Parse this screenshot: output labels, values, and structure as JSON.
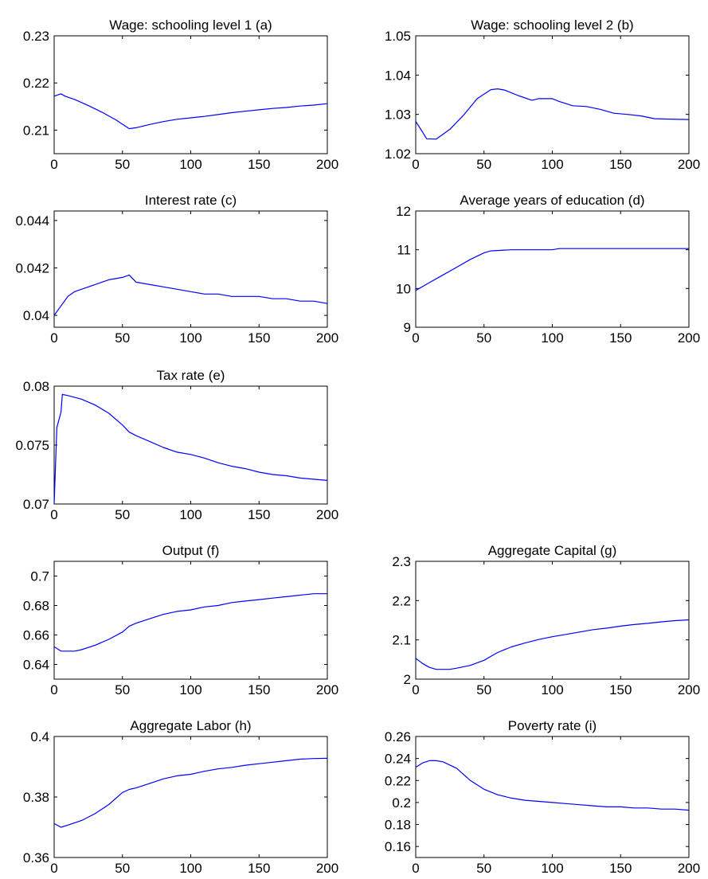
{
  "chart_data": [
    {
      "type": "line",
      "title": "Wage: schooling level 1 (a)",
      "xlim": [
        0,
        200
      ],
      "ylim": [
        0.205,
        0.23
      ],
      "xticks": [
        0,
        50,
        100,
        150,
        200
      ],
      "xtick_labels": [
        "0",
        "50",
        "100",
        "150",
        "200"
      ],
      "yticks": [
        0.21,
        0.22,
        0.23
      ],
      "ytick_labels": [
        "0.21",
        "0.22",
        "0.23"
      ],
      "series": [
        {
          "color": "#0000ff",
          "x": [
            0,
            5,
            8,
            15,
            25,
            35,
            45,
            55,
            60,
            70,
            80,
            90,
            100,
            110,
            120,
            130,
            140,
            150,
            160,
            170,
            180,
            190,
            200
          ],
          "y": [
            0.2172,
            0.2177,
            0.2172,
            0.2165,
            0.2152,
            0.2138,
            0.2122,
            0.2103,
            0.2105,
            0.2112,
            0.2118,
            0.2123,
            0.2126,
            0.2129,
            0.2133,
            0.2137,
            0.214,
            0.2143,
            0.2146,
            0.2148,
            0.2151,
            0.2153,
            0.2156
          ]
        }
      ]
    },
    {
      "type": "line",
      "title": "Wage: schooling level 2 (b)",
      "xlim": [
        0,
        200
      ],
      "ylim": [
        1.02,
        1.05
      ],
      "xticks": [
        0,
        50,
        100,
        150,
        200
      ],
      "xtick_labels": [
        "0",
        "50",
        "100",
        "150",
        "200"
      ],
      "yticks": [
        1.02,
        1.03,
        1.04,
        1.05
      ],
      "ytick_labels": [
        "1.02",
        "1.03",
        "1.04",
        "1.05"
      ],
      "series": [
        {
          "color": "#0000ff",
          "x": [
            0,
            5,
            8,
            15,
            25,
            35,
            45,
            55,
            60,
            65,
            75,
            85,
            90,
            100,
            105,
            115,
            125,
            135,
            145,
            155,
            165,
            175,
            185,
            200
          ],
          "y": [
            1.0282,
            1.0255,
            1.0238,
            1.0237,
            1.0262,
            1.0298,
            1.034,
            1.0363,
            1.0365,
            1.0362,
            1.0348,
            1.0336,
            1.034,
            1.034,
            1.0333,
            1.0322,
            1.032,
            1.0313,
            1.0303,
            1.03,
            1.0296,
            1.0289,
            1.0288,
            1.0287
          ]
        }
      ]
    },
    {
      "type": "line",
      "title": "Interest rate (c)",
      "xlim": [
        0,
        200
      ],
      "ylim": [
        0.0395,
        0.0444
      ],
      "xticks": [
        0,
        50,
        100,
        150,
        200
      ],
      "xtick_labels": [
        "0",
        "50",
        "100",
        "150",
        "200"
      ],
      "yticks": [
        0.04,
        0.042,
        0.044
      ],
      "ytick_labels": [
        "0.04",
        "0.042",
        "0.044"
      ],
      "series": [
        {
          "color": "#0000ff",
          "x": [
            0,
            5,
            10,
            15,
            20,
            30,
            40,
            50,
            55,
            60,
            70,
            80,
            90,
            100,
            110,
            120,
            130,
            140,
            150,
            160,
            170,
            180,
            190,
            200
          ],
          "y": [
            0.04,
            0.0404,
            0.0408,
            0.041,
            0.0411,
            0.0413,
            0.0415,
            0.0416,
            0.0417,
            0.0414,
            0.0413,
            0.0412,
            0.0411,
            0.041,
            0.0409,
            0.0409,
            0.0408,
            0.0408,
            0.0408,
            0.0407,
            0.0407,
            0.0406,
            0.0406,
            0.0405
          ]
        }
      ]
    },
    {
      "type": "line",
      "title": "Average years of education (d)",
      "xlim": [
        0,
        200
      ],
      "ylim": [
        9,
        12
      ],
      "xticks": [
        0,
        50,
        100,
        150,
        200
      ],
      "xtick_labels": [
        "0",
        "50",
        "100",
        "150",
        "200"
      ],
      "yticks": [
        9,
        10,
        11,
        12
      ],
      "ytick_labels": [
        "9",
        "10",
        "11",
        "12"
      ],
      "series": [
        {
          "color": "#0000ff",
          "x": [
            0,
            10,
            20,
            30,
            40,
            50,
            55,
            70,
            100,
            105,
            150,
            200
          ],
          "y": [
            9.95,
            10.15,
            10.35,
            10.55,
            10.75,
            10.92,
            10.97,
            11.0,
            11.0,
            11.03,
            11.03,
            11.03
          ]
        }
      ]
    },
    {
      "type": "line",
      "title": "Tax rate (e)",
      "xlim": [
        0,
        200
      ],
      "ylim": [
        0.07,
        0.08
      ],
      "xticks": [
        0,
        50,
        100,
        150,
        200
      ],
      "xtick_labels": [
        "0",
        "50",
        "100",
        "150",
        "200"
      ],
      "yticks": [
        0.07,
        0.075,
        0.08
      ],
      "ytick_labels": [
        "0.07",
        "0.075",
        "0.08"
      ],
      "series": [
        {
          "color": "#0000ff",
          "x": [
            0,
            2,
            5,
            6,
            10,
            20,
            30,
            40,
            50,
            55,
            60,
            70,
            80,
            90,
            100,
            110,
            120,
            130,
            140,
            150,
            160,
            170,
            180,
            190,
            200
          ],
          "y": [
            0.07,
            0.0765,
            0.0778,
            0.0793,
            0.0792,
            0.0789,
            0.0784,
            0.0777,
            0.0767,
            0.0761,
            0.0758,
            0.0753,
            0.0748,
            0.0744,
            0.0742,
            0.0739,
            0.0735,
            0.0732,
            0.073,
            0.0727,
            0.0725,
            0.0724,
            0.0722,
            0.0721,
            0.072
          ]
        }
      ]
    },
    {
      "type": "line",
      "title": "Output (f)",
      "xlim": [
        0,
        200
      ],
      "ylim": [
        0.63,
        0.71
      ],
      "xticks": [
        0,
        50,
        100,
        150,
        200
      ],
      "xtick_labels": [
        "0",
        "50",
        "100",
        "150",
        "200"
      ],
      "yticks": [
        0.64,
        0.66,
        0.68,
        0.7
      ],
      "ytick_labels": [
        "0.64",
        "0.66",
        "0.68",
        "0.7"
      ],
      "series": [
        {
          "color": "#0000ff",
          "x": [
            0,
            5,
            10,
            15,
            20,
            30,
            40,
            50,
            55,
            60,
            70,
            80,
            90,
            100,
            110,
            120,
            130,
            140,
            150,
            160,
            170,
            180,
            190,
            200
          ],
          "y": [
            0.652,
            0.649,
            0.649,
            0.649,
            0.65,
            0.653,
            0.657,
            0.662,
            0.666,
            0.668,
            0.671,
            0.674,
            0.676,
            0.677,
            0.679,
            0.68,
            0.682,
            0.683,
            0.684,
            0.685,
            0.686,
            0.687,
            0.688,
            0.688
          ]
        }
      ]
    },
    {
      "type": "line",
      "title": "Aggregate Capital (g)",
      "xlim": [
        0,
        200
      ],
      "ylim": [
        2.0,
        2.3
      ],
      "xticks": [
        0,
        50,
        100,
        150,
        200
      ],
      "xtick_labels": [
        "0",
        "50",
        "100",
        "150",
        "200"
      ],
      "yticks": [
        2.0,
        2.1,
        2.2,
        2.3
      ],
      "ytick_labels": [
        "2",
        "2.1",
        "2.2",
        "2.3"
      ],
      "series": [
        {
          "color": "#0000ff",
          "x": [
            0,
            5,
            10,
            15,
            20,
            25,
            30,
            40,
            50,
            55,
            60,
            70,
            80,
            90,
            100,
            110,
            120,
            130,
            140,
            150,
            160,
            170,
            180,
            190,
            200
          ],
          "y": [
            2.053,
            2.04,
            2.03,
            2.025,
            2.025,
            2.025,
            2.028,
            2.035,
            2.048,
            2.058,
            2.068,
            2.082,
            2.092,
            2.101,
            2.108,
            2.114,
            2.12,
            2.126,
            2.13,
            2.135,
            2.139,
            2.142,
            2.146,
            2.149,
            2.151
          ]
        }
      ]
    },
    {
      "type": "line",
      "title": "Aggregate Labor (h)",
      "xlim": [
        0,
        200
      ],
      "ylim": [
        0.36,
        0.4
      ],
      "xticks": [
        0,
        50,
        100,
        150,
        200
      ],
      "xtick_labels": [
        "0",
        "50",
        "100",
        "150",
        "200"
      ],
      "yticks": [
        0.36,
        0.38,
        0.4
      ],
      "ytick_labels": [
        "0.36",
        "0.38",
        "0.4"
      ],
      "series": [
        {
          "color": "#0000ff",
          "x": [
            0,
            5,
            10,
            20,
            30,
            40,
            50,
            55,
            60,
            70,
            80,
            90,
            100,
            110,
            120,
            130,
            140,
            150,
            160,
            170,
            180,
            190,
            200
          ],
          "y": [
            0.3712,
            0.37,
            0.3707,
            0.3722,
            0.3745,
            0.3775,
            0.3815,
            0.3825,
            0.383,
            0.3845,
            0.386,
            0.387,
            0.3875,
            0.3885,
            0.3893,
            0.3898,
            0.3905,
            0.391,
            0.3915,
            0.392,
            0.3925,
            0.3927,
            0.3928
          ]
        }
      ]
    },
    {
      "type": "line",
      "title": "Poverty rate (i)",
      "xlim": [
        0,
        200
      ],
      "ylim": [
        0.15,
        0.26
      ],
      "xticks": [
        0,
        50,
        100,
        150,
        200
      ],
      "xtick_labels": [
        "0",
        "50",
        "100",
        "150",
        "200"
      ],
      "yticks": [
        0.16,
        0.18,
        0.2,
        0.22,
        0.24,
        0.26
      ],
      "ytick_labels": [
        "0.16",
        "0.18",
        "0.2",
        "0.22",
        "0.24",
        "0.26"
      ],
      "series": [
        {
          "color": "#0000ff",
          "x": [
            0,
            5,
            10,
            15,
            20,
            30,
            40,
            50,
            60,
            70,
            80,
            90,
            100,
            110,
            120,
            130,
            140,
            150,
            160,
            170,
            180,
            190,
            200
          ],
          "y": [
            0.232,
            0.236,
            0.238,
            0.238,
            0.237,
            0.231,
            0.22,
            0.212,
            0.207,
            0.204,
            0.202,
            0.201,
            0.2,
            0.199,
            0.198,
            0.197,
            0.196,
            0.196,
            0.195,
            0.195,
            0.194,
            0.194,
            0.193
          ]
        }
      ]
    }
  ]
}
